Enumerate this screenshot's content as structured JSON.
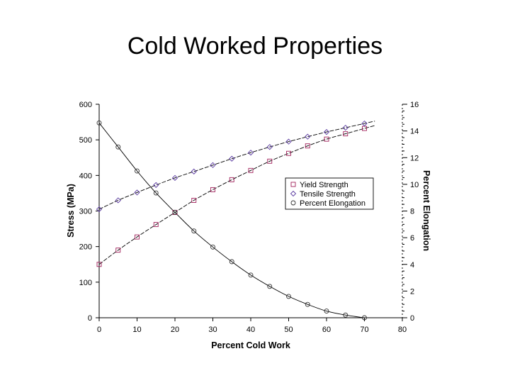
{
  "slide": {
    "title": "Cold Worked Properties"
  },
  "chart_data": {
    "type": "line",
    "title": "",
    "xlabel": "Percent Cold Work",
    "ylabel": "Stress (MPa)",
    "y2label": "Percent Elongation",
    "xlim": [
      0,
      80
    ],
    "ylim": [
      0,
      600
    ],
    "y2lim": [
      0,
      16
    ],
    "x_ticks": [
      0,
      10,
      20,
      30,
      40,
      50,
      60,
      70,
      80
    ],
    "y_ticks": [
      0,
      100,
      200,
      300,
      400,
      500,
      600
    ],
    "y2_ticks": [
      0,
      2,
      4,
      6,
      8,
      10,
      12,
      14,
      16
    ],
    "grid": false,
    "legend_position": "center-right",
    "series": [
      {
        "name": "Yield Strength",
        "axis": "left",
        "marker": "square",
        "color": "#a0205a",
        "x": [
          0,
          5,
          10,
          15,
          20,
          25,
          30,
          35,
          40,
          45,
          50,
          55,
          60,
          65,
          70
        ],
        "y": [
          150,
          190,
          227,
          262,
          296,
          330,
          360,
          388,
          414,
          440,
          462,
          483,
          502,
          517,
          532
        ]
      },
      {
        "name": "Tensile Strength",
        "axis": "left",
        "marker": "diamond",
        "color": "#5a3aa0",
        "x": [
          0,
          5,
          10,
          15,
          20,
          25,
          30,
          35,
          40,
          45,
          50,
          55,
          60,
          65,
          70
        ],
        "y": [
          305,
          330,
          352,
          373,
          393,
          411,
          429,
          447,
          464,
          480,
          495,
          509,
          522,
          534,
          546
        ]
      },
      {
        "name": "Percent Elongation",
        "axis": "right",
        "marker": "circle",
        "color": "#333333",
        "x": [
          0,
          5,
          10,
          15,
          20,
          25,
          30,
          35,
          40,
          45,
          50,
          55,
          60,
          65,
          70
        ],
        "y": [
          14.6,
          12.8,
          11.0,
          9.35,
          7.9,
          6.5,
          5.3,
          4.2,
          3.2,
          2.35,
          1.6,
          1.0,
          0.5,
          0.2,
          0.0
        ]
      }
    ]
  }
}
